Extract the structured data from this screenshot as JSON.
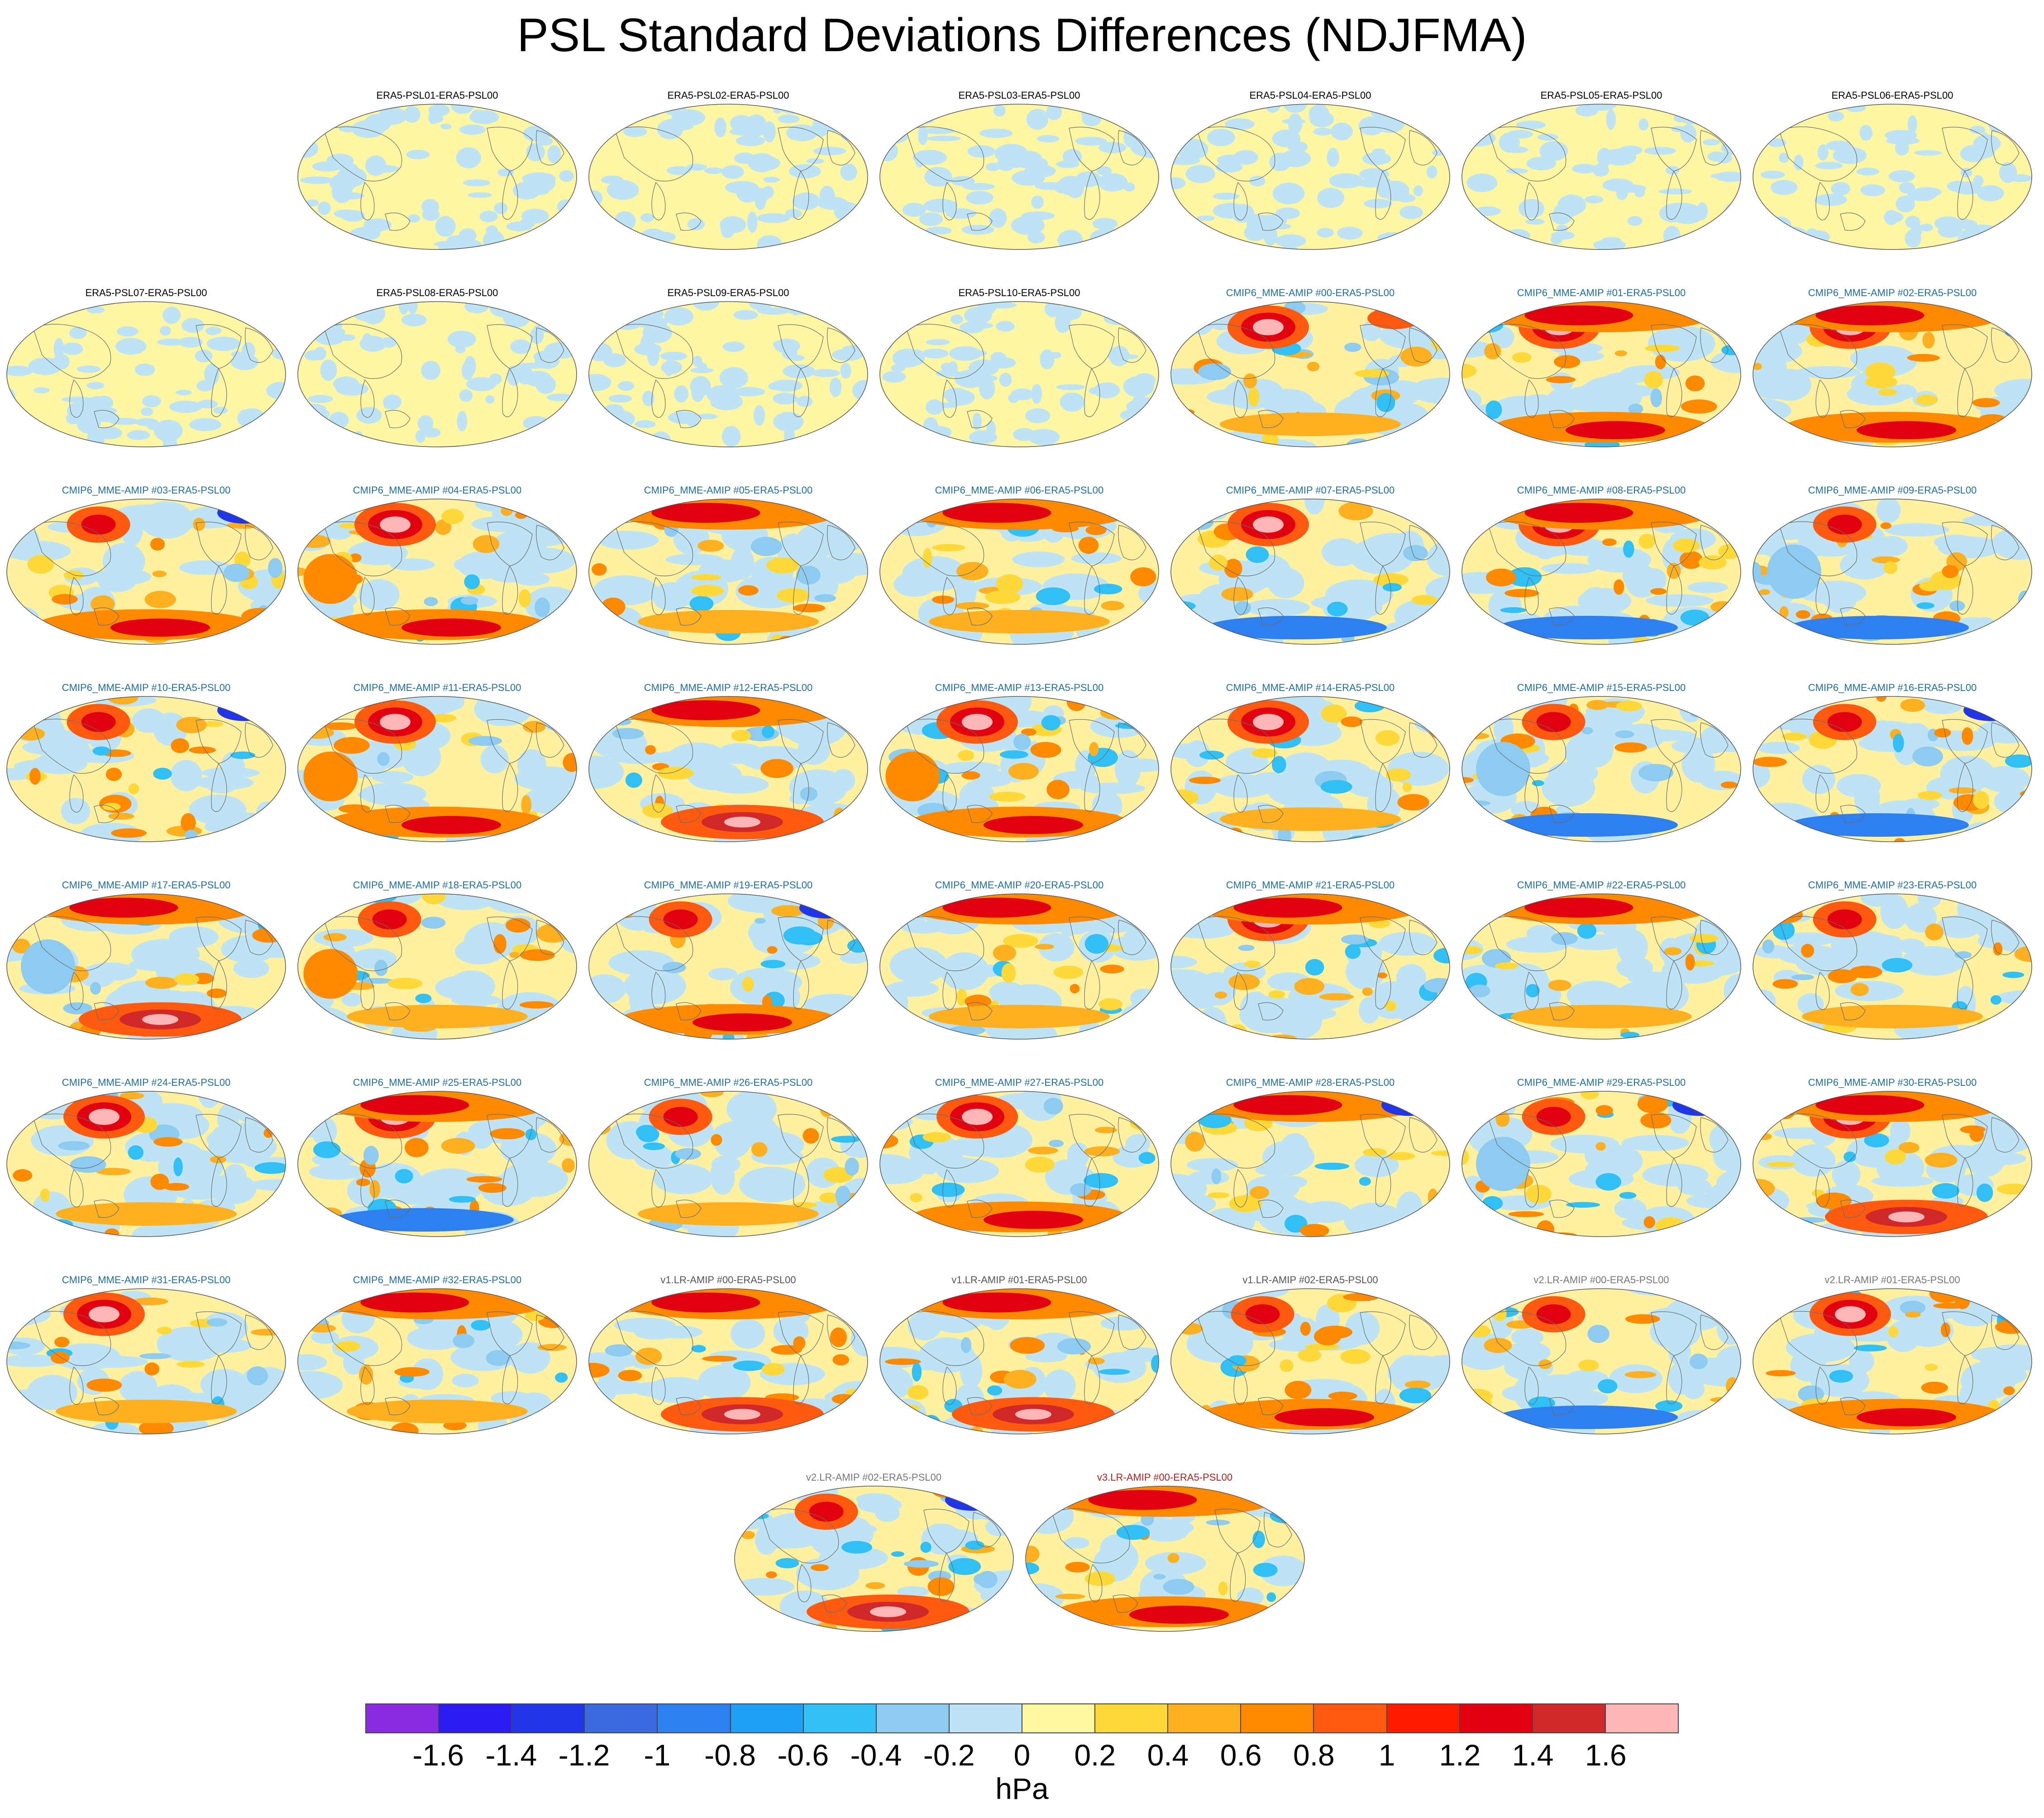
{
  "title": "PSL Standard Deviations Differences (NDJFMA)",
  "panels": [
    {
      "title": "ERA5-PSL01-ERA5-PSL00",
      "group": "era5",
      "row": 0,
      "col": 1,
      "hot": []
    },
    {
      "title": "ERA5-PSL02-ERA5-PSL00",
      "group": "era5",
      "row": 0,
      "col": 2,
      "hot": []
    },
    {
      "title": "ERA5-PSL03-ERA5-PSL00",
      "group": "era5",
      "row": 0,
      "col": 3,
      "hot": []
    },
    {
      "title": "ERA5-PSL04-ERA5-PSL00",
      "group": "era5",
      "row": 0,
      "col": 4,
      "hot": []
    },
    {
      "title": "ERA5-PSL05-ERA5-PSL00",
      "group": "era5",
      "row": 0,
      "col": 5,
      "hot": []
    },
    {
      "title": "ERA5-PSL06-ERA5-PSL00",
      "group": "era5",
      "row": 0,
      "col": 6,
      "hot": []
    },
    {
      "title": "ERA5-PSL07-ERA5-PSL00",
      "group": "era5",
      "row": 1,
      "col": 0,
      "hot": []
    },
    {
      "title": "ERA5-PSL08-ERA5-PSL00",
      "group": "era5",
      "row": 1,
      "col": 1,
      "hot": []
    },
    {
      "title": "ERA5-PSL09-ERA5-PSL00",
      "group": "era5",
      "row": 1,
      "col": 2,
      "hot": []
    },
    {
      "title": "ERA5-PSL10-ERA5-PSL00",
      "group": "era5",
      "row": 1,
      "col": 3,
      "hot": []
    },
    {
      "title": "CMIP6_MME-AMIP  #00-ERA5-PSL00",
      "group": "cmip6",
      "row": 1,
      "col": 4,
      "hot": [
        "np-strong",
        "ne-pos",
        "south-weak"
      ]
    },
    {
      "title": "CMIP6_MME-AMIP  #01-ERA5-PSL00",
      "group": "cmip6",
      "row": 1,
      "col": 5,
      "hot": [
        "np-strong",
        "north-band",
        "south-band"
      ]
    },
    {
      "title": "CMIP6_MME-AMIP  #02-ERA5-PSL00",
      "group": "cmip6",
      "row": 1,
      "col": 6,
      "hot": [
        "np-strong",
        "north-band",
        "south-band"
      ]
    },
    {
      "title": "CMIP6_MME-AMIP  #03-ERA5-PSL00",
      "group": "cmip6",
      "row": 2,
      "col": 0,
      "hot": [
        "np",
        "south-band",
        "ne-neg"
      ]
    },
    {
      "title": "CMIP6_MME-AMIP  #04-ERA5-PSL00",
      "group": "cmip6",
      "row": 2,
      "col": 1,
      "hot": [
        "np-strong",
        "south-band",
        "west-pos"
      ]
    },
    {
      "title": "CMIP6_MME-AMIP  #05-ERA5-PSL00",
      "group": "cmip6",
      "row": 2,
      "col": 2,
      "hot": [
        "north-band",
        "south-weak"
      ]
    },
    {
      "title": "CMIP6_MME-AMIP  #06-ERA5-PSL00",
      "group": "cmip6",
      "row": 2,
      "col": 3,
      "hot": [
        "north-band",
        "south-weak"
      ]
    },
    {
      "title": "CMIP6_MME-AMIP  #07-ERA5-PSL00",
      "group": "cmip6",
      "row": 2,
      "col": 4,
      "hot": [
        "np-strong",
        "south-neg"
      ]
    },
    {
      "title": "CMIP6_MME-AMIP  #08-ERA5-PSL00",
      "group": "cmip6",
      "row": 2,
      "col": 5,
      "hot": [
        "np-strong",
        "north-band",
        "south-neg"
      ]
    },
    {
      "title": "CMIP6_MME-AMIP  #09-ERA5-PSL00",
      "group": "cmip6",
      "row": 2,
      "col": 6,
      "hot": [
        "np",
        "south-neg",
        "west-neg"
      ]
    },
    {
      "title": "CMIP6_MME-AMIP  #10-ERA5-PSL00",
      "group": "cmip6",
      "row": 3,
      "col": 0,
      "hot": [
        "np",
        "ne-neg"
      ]
    },
    {
      "title": "CMIP6_MME-AMIP  #11-ERA5-PSL00",
      "group": "cmip6",
      "row": 3,
      "col": 1,
      "hot": [
        "np-strong",
        "south-band",
        "west-pos"
      ]
    },
    {
      "title": "CMIP6_MME-AMIP  #12-ERA5-PSL00",
      "group": "cmip6",
      "row": 3,
      "col": 2,
      "hot": [
        "north-band",
        "south-strong"
      ]
    },
    {
      "title": "CMIP6_MME-AMIP  #13-ERA5-PSL00",
      "group": "cmip6",
      "row": 3,
      "col": 3,
      "hot": [
        "np-strong",
        "south-band",
        "west-pos"
      ]
    },
    {
      "title": "CMIP6_MME-AMIP  #14-ERA5-PSL00",
      "group": "cmip6",
      "row": 3,
      "col": 4,
      "hot": [
        "np-strong",
        "south-weak"
      ]
    },
    {
      "title": "CMIP6_MME-AMIP  #15-ERA5-PSL00",
      "group": "cmip6",
      "row": 3,
      "col": 5,
      "hot": [
        "np",
        "south-neg",
        "west-neg"
      ]
    },
    {
      "title": "CMIP6_MME-AMIP  #16-ERA5-PSL00",
      "group": "cmip6",
      "row": 3,
      "col": 6,
      "hot": [
        "np",
        "south-neg",
        "ne-neg"
      ]
    },
    {
      "title": "CMIP6_MME-AMIP  #17-ERA5-PSL00",
      "group": "cmip6",
      "row": 4,
      "col": 0,
      "hot": [
        "north-band",
        "south-strong",
        "west-neg"
      ]
    },
    {
      "title": "CMIP6_MME-AMIP  #18-ERA5-PSL00",
      "group": "cmip6",
      "row": 4,
      "col": 1,
      "hot": [
        "np",
        "west-pos",
        "south-weak"
      ]
    },
    {
      "title": "CMIP6_MME-AMIP  #19-ERA5-PSL00",
      "group": "cmip6",
      "row": 4,
      "col": 2,
      "hot": [
        "np",
        "south-band",
        "ne-neg"
      ]
    },
    {
      "title": "CMIP6_MME-AMIP  #20-ERA5-PSL00",
      "group": "cmip6",
      "row": 4,
      "col": 3,
      "hot": [
        "north-band",
        "south-weak"
      ]
    },
    {
      "title": "CMIP6_MME-AMIP  #21-ERA5-PSL00",
      "group": "cmip6",
      "row": 4,
      "col": 4,
      "hot": [
        "np-strong",
        "north-band"
      ]
    },
    {
      "title": "CMIP6_MME-AMIP  #22-ERA5-PSL00",
      "group": "cmip6",
      "row": 4,
      "col": 5,
      "hot": [
        "north-band",
        "south-weak"
      ]
    },
    {
      "title": "CMIP6_MME-AMIP  #23-ERA5-PSL00",
      "group": "cmip6",
      "row": 4,
      "col": 6,
      "hot": [
        "np",
        "south-weak"
      ]
    },
    {
      "title": "CMIP6_MME-AMIP  #24-ERA5-PSL00",
      "group": "cmip6",
      "row": 5,
      "col": 0,
      "hot": [
        "np-strong",
        "south-weak"
      ]
    },
    {
      "title": "CMIP6_MME-AMIP  #25-ERA5-PSL00",
      "group": "cmip6",
      "row": 5,
      "col": 1,
      "hot": [
        "np-strong",
        "north-band",
        "south-neg"
      ]
    },
    {
      "title": "CMIP6_MME-AMIP  #26-ERA5-PSL00",
      "group": "cmip6",
      "row": 5,
      "col": 2,
      "hot": [
        "np",
        "south-weak"
      ]
    },
    {
      "title": "CMIP6_MME-AMIP  #27-ERA5-PSL00",
      "group": "cmip6",
      "row": 5,
      "col": 3,
      "hot": [
        "np-strong",
        "south-band"
      ]
    },
    {
      "title": "CMIP6_MME-AMIP  #28-ERA5-PSL00",
      "group": "cmip6",
      "row": 5,
      "col": 4,
      "hot": [
        "north-band",
        "ne-neg"
      ]
    },
    {
      "title": "CMIP6_MME-AMIP  #29-ERA5-PSL00",
      "group": "cmip6",
      "row": 5,
      "col": 5,
      "hot": [
        "np",
        "ne-neg",
        "west-neg"
      ]
    },
    {
      "title": "CMIP6_MME-AMIP  #30-ERA5-PSL00",
      "group": "cmip6",
      "row": 5,
      "col": 6,
      "hot": [
        "np-strong",
        "north-band",
        "south-strong"
      ]
    },
    {
      "title": "CMIP6_MME-AMIP  #31-ERA5-PSL00",
      "group": "cmip6",
      "row": 6,
      "col": 0,
      "hot": [
        "np-strong",
        "south-weak"
      ]
    },
    {
      "title": "CMIP6_MME-AMIP  #32-ERA5-PSL00",
      "group": "cmip6",
      "row": 6,
      "col": 1,
      "hot": [
        "north-band",
        "south-weak"
      ]
    },
    {
      "title": "v1.LR-AMIP  #00-ERA5-PSL00",
      "group": "v1",
      "row": 6,
      "col": 2,
      "hot": [
        "north-band",
        "south-strong"
      ]
    },
    {
      "title": "v1.LR-AMIP  #01-ERA5-PSL00",
      "group": "v1",
      "row": 6,
      "col": 3,
      "hot": [
        "north-band",
        "south-strong"
      ]
    },
    {
      "title": "v1.LR-AMIP  #02-ERA5-PSL00",
      "group": "v1",
      "row": 6,
      "col": 4,
      "hot": [
        "np",
        "south-band"
      ]
    },
    {
      "title": "v2.LR-AMIP  #00-ERA5-PSL00",
      "group": "v2",
      "row": 6,
      "col": 5,
      "hot": [
        "np",
        "south-neg"
      ]
    },
    {
      "title": "v2.LR-AMIP  #01-ERA5-PSL00",
      "group": "v2",
      "row": 6,
      "col": 6,
      "hot": [
        "np-strong",
        "south-band"
      ]
    },
    {
      "title": "v2.LR-AMIP  #02-ERA5-PSL00",
      "group": "v2",
      "row": 7,
      "col": 2.5,
      "hot": [
        "np",
        "south-strong",
        "ne-neg"
      ]
    },
    {
      "title": "v3.LR-AMIP  #00-ERA5-PSL00",
      "group": "v3",
      "row": 7,
      "col": 3.5,
      "hot": [
        "north-band",
        "south-band"
      ]
    }
  ],
  "title_colors": {
    "era5": "#000000",
    "cmip6": "#1f6fa0",
    "v1": "#555555",
    "v2": "#777777",
    "v3": "#b22222"
  },
  "colorbar": {
    "colors": [
      "#8a2be2",
      "#2b1bf0",
      "#2036e8",
      "#3b6ae0",
      "#2e7ff0",
      "#1fa0f5",
      "#30c0f5",
      "#8ecbf0",
      "#bde3f5",
      "#fff8a0",
      "#ffd83a",
      "#ffb020",
      "#ff8a00",
      "#ff5a10",
      "#ff1a00",
      "#e00010",
      "#d02828",
      "#ffb6b6"
    ],
    "labels": [
      "-1.6",
      "-1.4",
      "-1.2",
      "-1",
      "-0.8",
      "-0.6",
      "-0.4",
      "-0.2",
      "0",
      "0.2",
      "0.4",
      "0.6",
      "0.8",
      "1",
      "1.2",
      "1.4",
      "1.6"
    ],
    "units": "hPa"
  }
}
